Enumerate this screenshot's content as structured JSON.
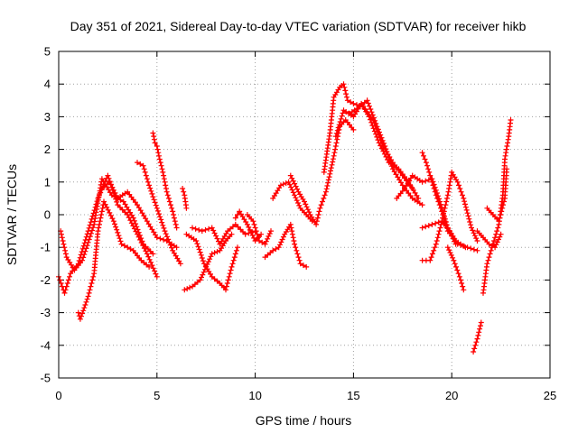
{
  "chart_data": {
    "type": "scatter",
    "title": "Day 351 of 2021, Sidereal Day-to-day VTEC variation (SDTVAR) for receiver hikb",
    "xlabel": "GPS time / hours",
    "ylabel": "SDTVAR / TECUs",
    "xlim": [
      0,
      25
    ],
    "ylim": [
      -5,
      5
    ],
    "xticks": [
      0,
      5,
      10,
      15,
      20,
      25
    ],
    "yticks": [
      -5,
      -4,
      -3,
      -2,
      -1,
      0,
      1,
      2,
      3,
      4,
      5
    ],
    "grid": true,
    "marker": "+",
    "color": "#ff0000",
    "series": [
      {
        "name": "trace-1",
        "points": [
          [
            0.0,
            -1.9
          ],
          [
            0.3,
            -2.4
          ],
          [
            0.6,
            -1.8
          ],
          [
            1.0,
            -1.5
          ],
          [
            1.5,
            -0.5
          ],
          [
            2.0,
            0.5
          ],
          [
            2.5,
            1.2
          ],
          [
            3.0,
            0.3
          ],
          [
            3.5,
            0.0
          ],
          [
            4.0,
            -0.6
          ],
          [
            4.5,
            -1.2
          ],
          [
            5.0,
            -1.9
          ]
        ]
      },
      {
        "name": "trace-2",
        "points": [
          [
            0.1,
            -0.5
          ],
          [
            0.4,
            -1.3
          ],
          [
            0.8,
            -1.7
          ],
          [
            1.2,
            -1.4
          ],
          [
            1.8,
            -0.3
          ],
          [
            2.2,
            1.1
          ],
          [
            2.7,
            0.6
          ],
          [
            3.3,
            0.4
          ],
          [
            3.8,
            -0.1
          ],
          [
            4.3,
            -0.9
          ],
          [
            4.8,
            -1.2
          ]
        ]
      },
      {
        "name": "trace-3",
        "points": [
          [
            1.0,
            -3.0
          ],
          [
            1.1,
            -3.2
          ],
          [
            1.5,
            -2.5
          ],
          [
            1.8,
            -1.8
          ],
          [
            2.0,
            -0.5
          ],
          [
            2.3,
            0.4
          ],
          [
            2.8,
            -0.2
          ],
          [
            3.2,
            -0.9
          ],
          [
            3.8,
            -1.1
          ],
          [
            4.2,
            -1.4
          ],
          [
            4.6,
            -1.6
          ]
        ]
      },
      {
        "name": "trace-4",
        "points": [
          [
            2.2,
            0.8
          ],
          [
            2.6,
            1.0
          ],
          [
            3.0,
            0.5
          ],
          [
            3.5,
            0.7
          ],
          [
            4.0,
            0.3
          ],
          [
            4.5,
            -0.2
          ],
          [
            5.0,
            -0.7
          ],
          [
            5.5,
            -0.8
          ],
          [
            6.0,
            -1.0
          ]
        ]
      },
      {
        "name": "trace-5",
        "points": [
          [
            4.0,
            1.6
          ],
          [
            4.3,
            1.5
          ],
          [
            4.6,
            0.9
          ],
          [
            5.0,
            0.2
          ],
          [
            5.4,
            -0.5
          ],
          [
            5.8,
            -1.1
          ],
          [
            6.2,
            -1.5
          ]
        ]
      },
      {
        "name": "trace-6",
        "points": [
          [
            4.8,
            2.5
          ],
          [
            4.9,
            2.2
          ],
          [
            5.0,
            2.1
          ],
          [
            5.1,
            1.8
          ],
          [
            5.3,
            1.3
          ],
          [
            5.5,
            0.7
          ],
          [
            5.8,
            0.1
          ],
          [
            6.0,
            -0.4
          ]
        ]
      },
      {
        "name": "trace-7",
        "points": [
          [
            6.3,
            0.8
          ],
          [
            6.4,
            0.6
          ],
          [
            6.5,
            0.2
          ]
        ]
      },
      {
        "name": "trace-8",
        "points": [
          [
            6.4,
            -2.3
          ],
          [
            6.8,
            -2.2
          ],
          [
            7.2,
            -2.0
          ],
          [
            7.5,
            -1.6
          ],
          [
            7.8,
            -1.2
          ],
          [
            8.2,
            -1.1
          ],
          [
            8.5,
            -0.8
          ],
          [
            8.8,
            -0.6
          ]
        ]
      },
      {
        "name": "trace-9",
        "points": [
          [
            6.5,
            -0.6
          ],
          [
            7.0,
            -0.8
          ],
          [
            7.4,
            -1.5
          ],
          [
            7.8,
            -1.9
          ],
          [
            8.2,
            -2.1
          ],
          [
            8.5,
            -2.3
          ],
          [
            8.8,
            -1.6
          ],
          [
            9.1,
            -1.0
          ]
        ]
      },
      {
        "name": "trace-10",
        "points": [
          [
            6.8,
            -0.4
          ],
          [
            7.3,
            -0.5
          ],
          [
            7.8,
            -0.4
          ],
          [
            8.2,
            -0.9
          ],
          [
            8.6,
            -0.5
          ],
          [
            9.0,
            -0.3
          ],
          [
            9.5,
            -0.6
          ],
          [
            10.0,
            -0.5
          ]
        ]
      },
      {
        "name": "trace-11",
        "points": [
          [
            9.6,
            0.0
          ],
          [
            9.9,
            -0.2
          ],
          [
            10.2,
            -0.8
          ],
          [
            10.5,
            -0.9
          ],
          [
            10.8,
            -0.5
          ]
        ]
      },
      {
        "name": "trace-12",
        "points": [
          [
            9.0,
            -0.1
          ],
          [
            9.2,
            0.1
          ],
          [
            9.6,
            -0.3
          ],
          [
            10.0,
            -0.8
          ],
          [
            10.3,
            -0.6
          ]
        ]
      },
      {
        "name": "trace-13",
        "points": [
          [
            10.5,
            -1.3
          ],
          [
            10.9,
            -1.1
          ],
          [
            11.2,
            -1.0
          ],
          [
            11.5,
            -0.6
          ],
          [
            11.8,
            -0.3
          ],
          [
            12.0,
            -0.9
          ],
          [
            12.3,
            -1.5
          ],
          [
            12.6,
            -1.6
          ]
        ]
      },
      {
        "name": "trace-14",
        "points": [
          [
            10.9,
            0.5
          ],
          [
            11.3,
            0.9
          ],
          [
            11.7,
            1.0
          ],
          [
            12.0,
            0.6
          ],
          [
            12.3,
            0.2
          ],
          [
            12.6,
            0.0
          ],
          [
            12.9,
            -0.2
          ]
        ]
      },
      {
        "name": "trace-15",
        "points": [
          [
            11.8,
            1.2
          ],
          [
            12.2,
            0.7
          ],
          [
            12.5,
            0.4
          ],
          [
            12.8,
            0.0
          ],
          [
            13.1,
            -0.3
          ],
          [
            13.3,
            0.2
          ],
          [
            13.6,
            0.7
          ],
          [
            14.0,
            1.8
          ],
          [
            14.3,
            2.7
          ],
          [
            14.6,
            2.9
          ],
          [
            15.0,
            2.6
          ]
        ]
      },
      {
        "name": "trace-16",
        "points": [
          [
            13.5,
            1.3
          ],
          [
            13.8,
            2.5
          ],
          [
            14.0,
            3.6
          ],
          [
            14.3,
            3.9
          ],
          [
            14.5,
            4.0
          ],
          [
            14.7,
            3.5
          ],
          [
            15.0,
            3.4
          ],
          [
            15.5,
            3.3
          ],
          [
            16.0,
            2.9
          ],
          [
            16.5,
            2.1
          ],
          [
            17.0,
            1.6
          ],
          [
            17.5,
            1.2
          ],
          [
            18.0,
            0.8
          ]
        ]
      },
      {
        "name": "trace-17",
        "points": [
          [
            14.1,
            2.4
          ],
          [
            14.5,
            3.2
          ],
          [
            15.0,
            3.0
          ],
          [
            15.4,
            3.4
          ],
          [
            15.8,
            3.0
          ],
          [
            16.3,
            2.2
          ],
          [
            16.8,
            1.6
          ],
          [
            17.3,
            1.4
          ],
          [
            17.8,
            1.0
          ],
          [
            18.3,
            0.5
          ]
        ]
      },
      {
        "name": "trace-18",
        "points": [
          [
            14.8,
            3.1
          ],
          [
            15.3,
            3.3
          ],
          [
            15.7,
            3.5
          ],
          [
            16.2,
            2.7
          ],
          [
            16.6,
            2.1
          ],
          [
            17.0,
            1.4
          ],
          [
            17.5,
            0.9
          ],
          [
            18.0,
            0.5
          ],
          [
            18.5,
            0.3
          ]
        ]
      },
      {
        "name": "trace-19",
        "points": [
          [
            17.2,
            0.5
          ],
          [
            17.6,
            0.8
          ],
          [
            18.0,
            1.2
          ],
          [
            18.5,
            1.0
          ],
          [
            19.0,
            1.1
          ],
          [
            19.4,
            0.4
          ],
          [
            19.8,
            -0.4
          ],
          [
            20.2,
            -0.9
          ]
        ]
      },
      {
        "name": "trace-20",
        "points": [
          [
            18.5,
            -0.4
          ],
          [
            19.0,
            -0.3
          ],
          [
            19.5,
            -0.2
          ],
          [
            19.9,
            -0.5
          ],
          [
            20.3,
            -0.9
          ],
          [
            20.8,
            -1.0
          ],
          [
            21.3,
            -1.1
          ]
        ]
      },
      {
        "name": "trace-21",
        "points": [
          [
            18.5,
            1.9
          ],
          [
            18.7,
            1.6
          ],
          [
            19.0,
            1.0
          ],
          [
            19.2,
            0.6
          ],
          [
            19.5,
            0.1
          ],
          [
            19.8,
            -0.5
          ],
          [
            20.2,
            -0.8
          ],
          [
            20.7,
            -1.0
          ]
        ]
      },
      {
        "name": "trace-22",
        "points": [
          [
            18.5,
            -1.4
          ],
          [
            18.9,
            -1.4
          ],
          [
            19.2,
            -0.9
          ],
          [
            19.5,
            -0.2
          ],
          [
            19.8,
            0.6
          ],
          [
            20.0,
            1.3
          ],
          [
            20.3,
            1.0
          ],
          [
            20.6,
            0.5
          ],
          [
            21.0,
            -0.4
          ],
          [
            21.3,
            -0.8
          ]
        ]
      },
      {
        "name": "trace-23",
        "points": [
          [
            19.8,
            -1.0
          ],
          [
            20.1,
            -1.4
          ],
          [
            20.4,
            -1.9
          ],
          [
            20.6,
            -2.3
          ]
        ]
      },
      {
        "name": "trace-24",
        "points": [
          [
            21.1,
            -4.2
          ],
          [
            21.3,
            -3.8
          ],
          [
            21.5,
            -3.3
          ]
        ]
      },
      {
        "name": "trace-25",
        "points": [
          [
            21.6,
            -2.4
          ],
          [
            21.8,
            -1.5
          ],
          [
            22.1,
            -0.9
          ],
          [
            22.4,
            -0.3
          ],
          [
            22.6,
            0.6
          ],
          [
            22.7,
            1.7
          ],
          [
            22.9,
            2.4
          ],
          [
            23.0,
            2.9
          ]
        ]
      },
      {
        "name": "trace-26",
        "points": [
          [
            21.3,
            -0.5
          ],
          [
            21.6,
            -0.7
          ],
          [
            21.9,
            -0.9
          ],
          [
            22.2,
            -1.0
          ],
          [
            22.5,
            -0.6
          ]
        ]
      },
      {
        "name": "trace-27",
        "points": [
          [
            21.8,
            0.2
          ],
          [
            22.1,
            0.0
          ],
          [
            22.4,
            -0.2
          ],
          [
            22.7,
            0.5
          ],
          [
            22.8,
            1.4
          ]
        ]
      }
    ]
  }
}
